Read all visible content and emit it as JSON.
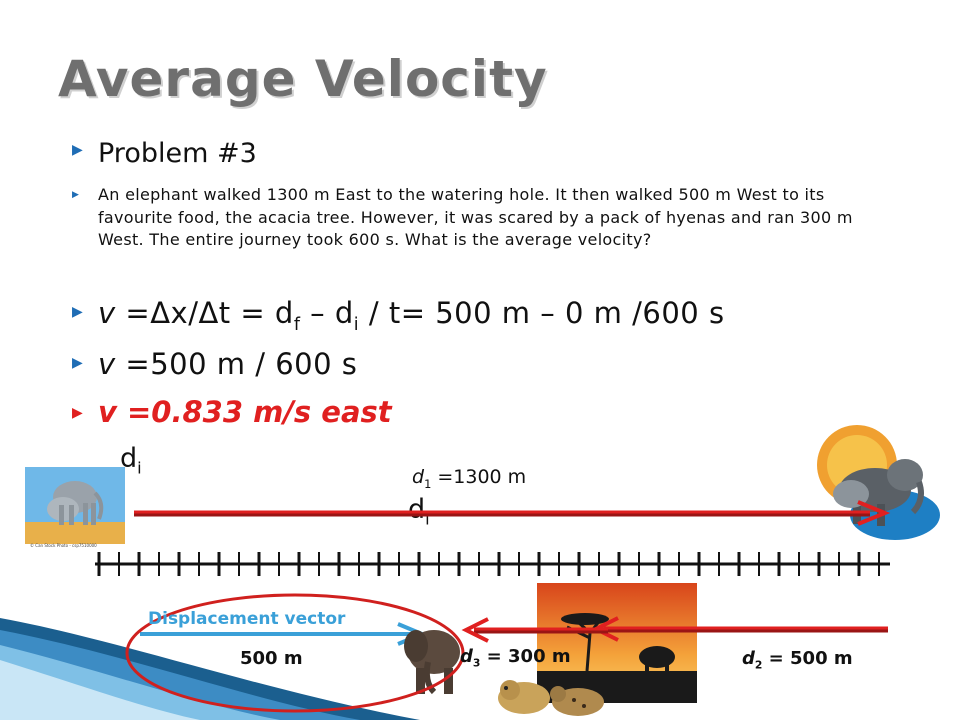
{
  "slide": {
    "title": "Average Velocity",
    "bullet_glyph": "▶",
    "problem_heading": "Problem #3",
    "problem_text": "An elephant walked 1300 m East to the watering hole. It then walked 500 m West to its favourite food, the acacia tree. However, it was scared by a pack of hyenas and ran 300 m West. The entire journey took 600 s. What is the average velocity?",
    "eq1": {
      "v": "v",
      "a": " =Δx/Δt = d",
      "f": "f",
      "b": " – d",
      "i": "i",
      "c": " / t= 500 m – 0 m /600 s"
    },
    "eq2": {
      "v": "v",
      "rest": " =500 m / 600 s"
    },
    "eq3": "v =0.833 m/s east"
  },
  "diagram": {
    "di_label_left": {
      "d": "d",
      "i": "i"
    },
    "di_label_mid": {
      "d": "d",
      "i": "i"
    },
    "d1_label": {
      "d": "d",
      "sub": "1",
      "rest": " =1300 m"
    },
    "displacement_label": "Displacement vector",
    "displacement_value": "500 m",
    "d3_label": {
      "d": "d",
      "sub": "3",
      "rest": " = 300 m"
    },
    "d2_label": {
      "d": "d",
      "sub": "2",
      "rest": " = 500 m"
    },
    "image_credit": "© Can Stock Photo - csp7510000",
    "colors": {
      "title": "#6f6f6f",
      "bullet": "#1f6db5",
      "answer": "#e02020",
      "arrow_red": "#e02020",
      "displacement_blue": "#3aa0d8",
      "circle": "#d0201e"
    }
  }
}
